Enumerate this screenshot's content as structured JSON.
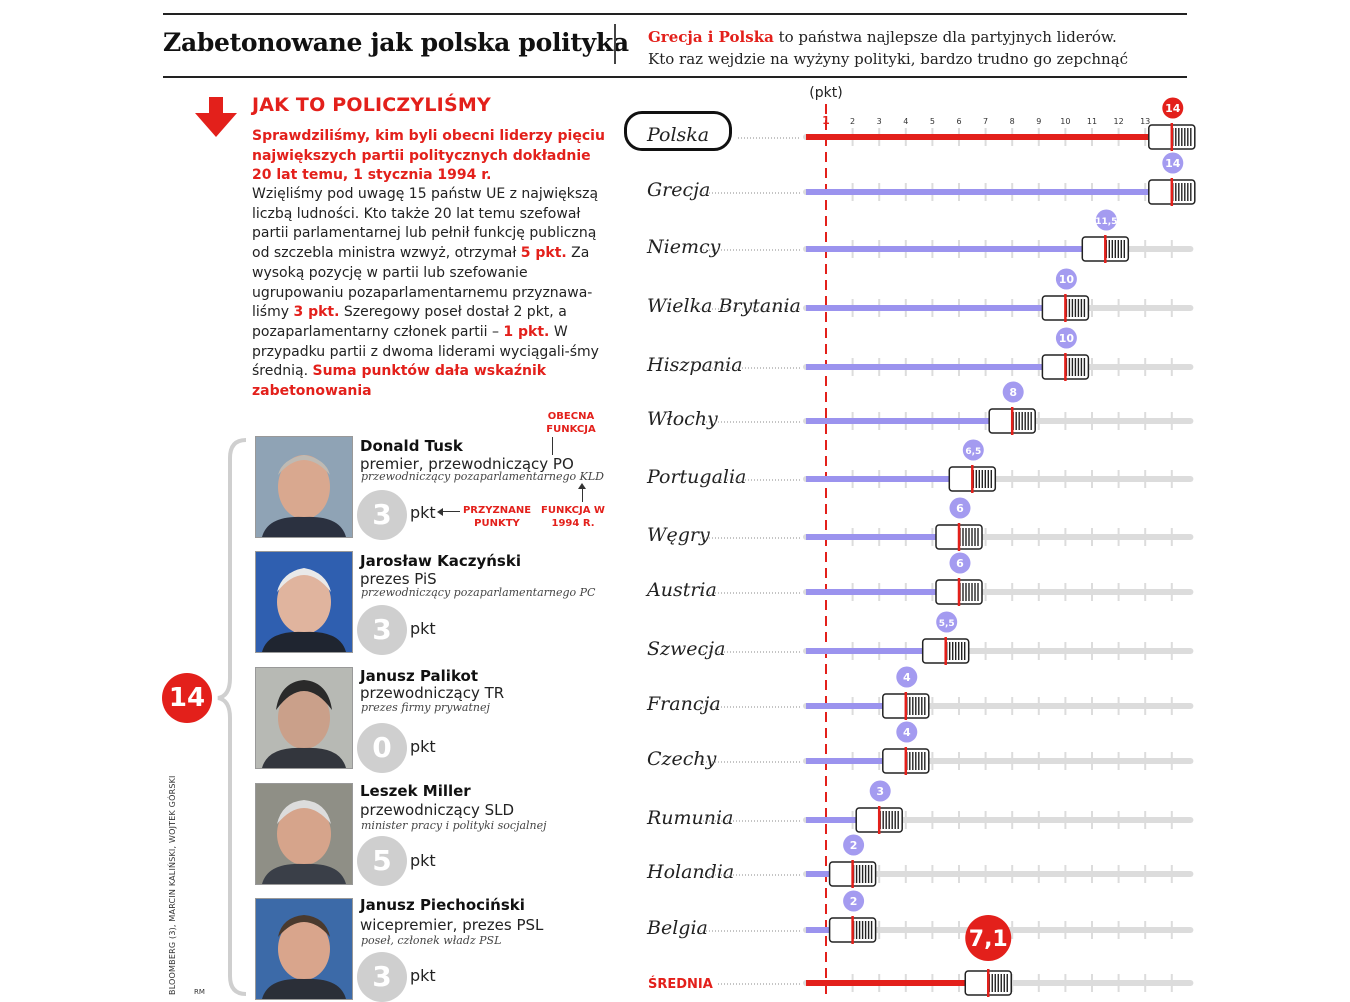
{
  "header": {
    "title": "Zabetonowane jak polska polityka",
    "line1_red": "Grecja i Polska",
    "line1_rest": " to państwa najlepsze dla partyjnych liderów.",
    "line2": "Kto raz wejdzie na wyżyny polityki, bardzo trudno go zepchnąć"
  },
  "method": {
    "title": "JAK TO POLICZYLIŚMY",
    "lead": "Sprawdziliśmy, kim byli obecni liderzy pięciu największych partii politycznych dokładnie 20 lat temu, 1 stycznia 1994 r.",
    "p1": "Wzięliśmy pod uwagę 15 państw UE z największą liczbą ludności. Kto także 20 lat temu szefował partii parlamentarnej lub pełnił funkcję publiczną od szczebla ministra wzwyż, otrzymał ",
    "p1_red": "5 pkt.",
    "p2": " Za wysoką pozycję w partii lub szefowanie ugrupowaniu pozaparlamentarnemu przyznawa-liśmy ",
    "p2_red": "3 pkt.",
    "p3": " Szeregowy poseł dostał 2 pkt, a pozaparlamentarny członek partii – ",
    "p3_red": "1 pkt.",
    "p4": " W przypadku partii z dwoma liderami wyciągali-śmy średnią. ",
    "p4_red": "Suma punktów dała wskaźnik zabetonowania"
  },
  "annotations": {
    "current_function": "OBECNA FUNKCJA",
    "function_1994": "FUNKCJA W 1994 R.",
    "points_awarded": "PRZYZNANE PUNKTY"
  },
  "total_poland": "14",
  "pkt_label": "pkt",
  "people": [
    {
      "name": "Donald Tusk",
      "role": "premier, przewodniczący PO",
      "past": "przewodniczący pozaparlamentarnego KLD",
      "points": "3"
    },
    {
      "name": "Jarosław Kaczyński",
      "role": "prezes PiS",
      "past": "przewodniczący pozaparlamentarnego PC",
      "points": "3"
    },
    {
      "name": "Janusz Palikot",
      "role": "przewodniczący TR",
      "past": "prezes firmy prywatnej",
      "points": "0"
    },
    {
      "name": "Leszek Miller",
      "role": "przewodniczący SLD",
      "past": "minister pracy i polityki socjalnej",
      "points": "5"
    },
    {
      "name": "Janusz Piechociński",
      "role": "wicepremier, prezes PSL",
      "past": "poseł, członek władz PSL",
      "points": "3"
    }
  ],
  "credit": "BLOOMBERG (3), MARCIN KALIŃSKI, WOJTEK GÓRSKI",
  "rm": "RM",
  "chart_data": {
    "type": "bar",
    "orientation": "horizontal",
    "unit_label": "(pkt)",
    "x_ticks": [
      1,
      2,
      3,
      4,
      5,
      6,
      7,
      8,
      9,
      10,
      11,
      12,
      13,
      14
    ],
    "xlim": [
      1,
      14
    ],
    "categories": [
      "Polska",
      "Grecja",
      "Niemcy",
      "Wielka Brytania",
      "Hiszpania",
      "Włochy",
      "Portugalia",
      "Węgry",
      "Austria",
      "Szwecja",
      "Francja",
      "Czechy",
      "Rumunia",
      "Holandia",
      "Belgia"
    ],
    "values": [
      14,
      14,
      11.5,
      10,
      10,
      8,
      6.5,
      6,
      6,
      5.5,
      4,
      4,
      3,
      2,
      2
    ],
    "value_labels": [
      "14",
      "14",
      "11,5",
      "10",
      "10",
      "8",
      "6,5",
      "6",
      "6",
      "5,5",
      "4",
      "4",
      "3",
      "2",
      "2"
    ],
    "average": {
      "label": "ŚREDNIA",
      "value": 7.1,
      "value_label": "7,1"
    },
    "colors": {
      "highlight": "#e3201b",
      "bar": "#9b93ee",
      "track": "#dcdcdc",
      "badge": "#a49bf0"
    }
  }
}
